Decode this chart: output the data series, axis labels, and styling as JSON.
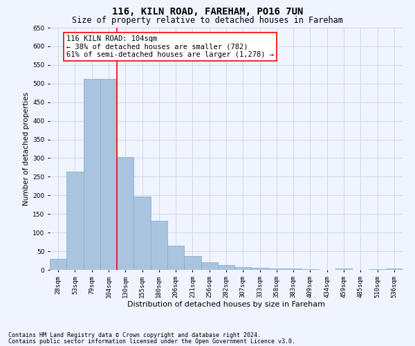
{
  "title": "116, KILN ROAD, FAREHAM, PO16 7UN",
  "subtitle": "Size of property relative to detached houses in Fareham",
  "xlabel": "Distribution of detached houses by size in Fareham",
  "ylabel": "Number of detached properties",
  "categories": [
    "28sqm",
    "53sqm",
    "79sqm",
    "104sqm",
    "130sqm",
    "155sqm",
    "180sqm",
    "206sqm",
    "231sqm",
    "256sqm",
    "282sqm",
    "307sqm",
    "333sqm",
    "358sqm",
    "383sqm",
    "409sqm",
    "434sqm",
    "459sqm",
    "485sqm",
    "510sqm",
    "536sqm"
  ],
  "values": [
    30,
    263,
    513,
    513,
    302,
    197,
    131,
    65,
    37,
    20,
    13,
    8,
    5,
    4,
    4,
    1,
    0,
    4,
    0,
    1,
    4
  ],
  "bar_color": "#aac4e0",
  "bar_edge_color": "#7aaacf",
  "grid_color": "#d0d8e8",
  "vline_x_index": 3,
  "vline_color": "red",
  "annotation_text": "116 KILN ROAD: 104sqm\n← 38% of detached houses are smaller (782)\n61% of semi-detached houses are larger (1,278) →",
  "annotation_box_color": "white",
  "annotation_box_edgecolor": "red",
  "ylim": [
    0,
    650
  ],
  "yticks": [
    0,
    50,
    100,
    150,
    200,
    250,
    300,
    350,
    400,
    450,
    500,
    550,
    600,
    650
  ],
  "footnote1": "Contains HM Land Registry data © Crown copyright and database right 2024.",
  "footnote2": "Contains public sector information licensed under the Open Government Licence v3.0.",
  "bg_color": "#f0f4ff",
  "title_fontsize": 10,
  "subtitle_fontsize": 8.5,
  "annotation_fontsize": 7.5,
  "tick_fontsize": 6.5,
  "ylabel_fontsize": 7.5,
  "xlabel_fontsize": 8
}
